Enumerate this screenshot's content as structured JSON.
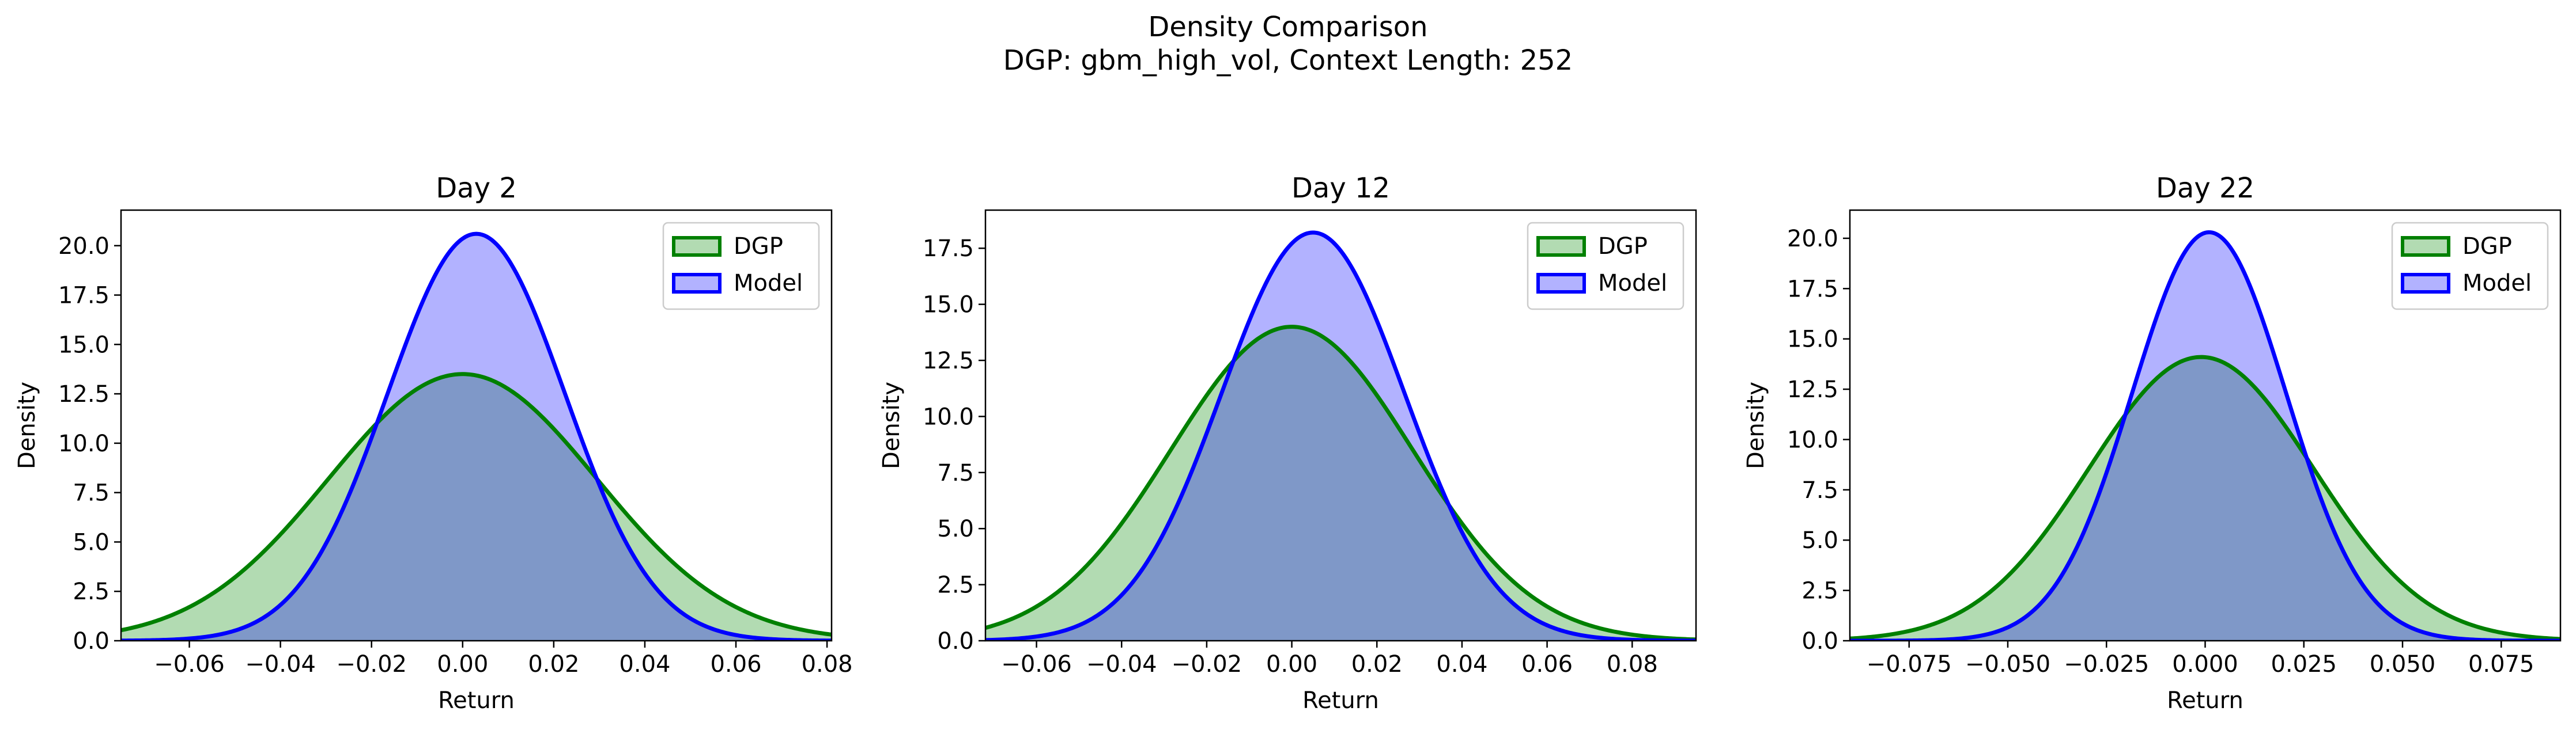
{
  "figure": {
    "suptitle_line1": "Density Comparison",
    "suptitle_line2": "DGP: gbm_high_vol, Context Length: 252"
  },
  "colors": {
    "dgp_line": "#008000",
    "dgp_fill": "#b2dbb2",
    "model_line": "#0000ff",
    "model_fill": "#b2b2ff",
    "overlap_fill": "#7f98c8"
  },
  "chart_data": [
    {
      "type": "area",
      "title": "Day 2",
      "xlabel": "Return",
      "ylabel": "Density",
      "xlim": [
        -0.075,
        0.081
      ],
      "ylim": [
        0,
        21.8
      ],
      "xticks": [
        -0.06,
        -0.04,
        -0.02,
        0.0,
        0.02,
        0.04,
        0.06,
        0.08
      ],
      "xticklabels": [
        "−0.06",
        "−0.04",
        "−0.02",
        "0.00",
        "0.02",
        "0.04",
        "0.06",
        "0.08"
      ],
      "yticks": [
        0,
        2.5,
        5,
        7.5,
        10,
        12.5,
        15,
        17.5,
        20
      ],
      "yticklabels": [
        "0.0",
        "2.5",
        "5.0",
        "7.5",
        "10.0",
        "12.5",
        "15.0",
        "17.5",
        "20.0"
      ],
      "legend": "top-right",
      "series": [
        {
          "name": "DGP",
          "peak": 13.5,
          "mean": 0.0,
          "std": 0.0295
        },
        {
          "name": "Model",
          "peak": 20.6,
          "mean": 0.003,
          "std": 0.0195
        }
      ]
    },
    {
      "type": "area",
      "title": "Day 12",
      "xlabel": "Return",
      "ylabel": "Density",
      "xlim": [
        -0.072,
        0.095
      ],
      "ylim": [
        0,
        19.2
      ],
      "xticks": [
        -0.06,
        -0.04,
        -0.02,
        0.0,
        0.02,
        0.04,
        0.06,
        0.08
      ],
      "xticklabels": [
        "−0.06",
        "−0.04",
        "−0.02",
        "0.00",
        "0.02",
        "0.04",
        "0.06",
        "0.08"
      ],
      "yticks": [
        0,
        2.5,
        5,
        7.5,
        10,
        12.5,
        15,
        17.5
      ],
      "yticklabels": [
        "0.0",
        "2.5",
        "5.0",
        "7.5",
        "10.0",
        "12.5",
        "15.0",
        "17.5"
      ],
      "legend": "top-right",
      "series": [
        {
          "name": "DGP",
          "peak": 14.0,
          "mean": 0.0,
          "std": 0.0285
        },
        {
          "name": "Model",
          "peak": 18.2,
          "mean": 0.005,
          "std": 0.0215
        }
      ]
    },
    {
      "type": "area",
      "title": "Day 22",
      "xlabel": "Return",
      "ylabel": "Density",
      "xlim": [
        -0.09,
        0.09
      ],
      "ylim": [
        0,
        21.4
      ],
      "xticks": [
        -0.075,
        -0.05,
        -0.025,
        0.0,
        0.025,
        0.05,
        0.075
      ],
      "xticklabels": [
        "−0.075",
        "−0.050",
        "−0.025",
        "0.000",
        "0.025",
        "0.050",
        "0.075"
      ],
      "yticks": [
        0,
        2.5,
        5,
        7.5,
        10,
        12.5,
        15,
        17.5,
        20
      ],
      "yticklabels": [
        "0.0",
        "2.5",
        "5.0",
        "7.5",
        "10.0",
        "12.5",
        "15.0",
        "17.5",
        "20.0"
      ],
      "legend": "top-right",
      "series": [
        {
          "name": "DGP",
          "peak": 14.1,
          "mean": -0.001,
          "std": 0.0285
        },
        {
          "name": "Model",
          "peak": 20.3,
          "mean": 0.001,
          "std": 0.0195
        }
      ]
    }
  ]
}
